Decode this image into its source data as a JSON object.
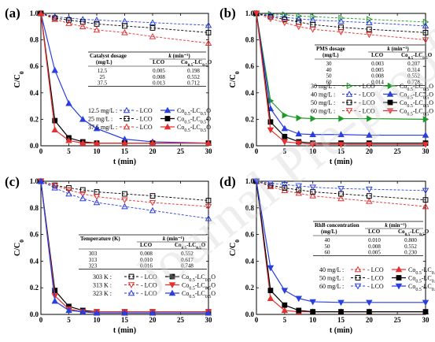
{
  "figure_labels": [
    "(a)",
    "(b)",
    "(c)",
    "(d)"
  ],
  "watermark": "Journal Pre-proof",
  "chart_data": [
    {
      "type": "line",
      "panel_label": "(a)",
      "xlabel": "t (min)",
      "ylabel": "C/C0",
      "xlim": [
        0,
        30
      ],
      "ylim": [
        0.0,
        1.0
      ],
      "xticks": [
        0,
        5,
        10,
        15,
        20,
        25,
        30
      ],
      "yticks": [
        0.0,
        0.2,
        0.4,
        0.6,
        0.8,
        1.0
      ],
      "x": [
        0,
        2.5,
        5,
        7.5,
        10,
        15,
        20,
        30
      ],
      "series": [
        {
          "name": "12.5 mg/L : - LCO",
          "color": "#2a3fe0",
          "dashed": true,
          "marker": "triangle-up",
          "values": [
            1.0,
            0.975,
            0.965,
            0.955,
            0.95,
            0.94,
            0.93,
            0.91
          ]
        },
        {
          "name": "25 mg/L : - LCO",
          "color": "#000000",
          "dashed": true,
          "marker": "square",
          "values": [
            1.0,
            0.965,
            0.95,
            0.935,
            0.92,
            0.905,
            0.89,
            0.855
          ]
        },
        {
          "name": "37.5 mg/L : - LCO",
          "color": "#e53030",
          "dashed": true,
          "marker": "triangle-up",
          "values": [
            1.0,
            0.955,
            0.925,
            0.9,
            0.875,
            0.855,
            0.825,
            0.775
          ]
        },
        {
          "name": "12.5 mg/L : Co0.5-LC0.5O",
          "color": "#2a3fe0",
          "dashed": false,
          "marker": "triangle-up",
          "filled": true,
          "values": [
            1.0,
            0.57,
            0.32,
            0.2,
            0.13,
            0.05,
            0.03,
            0.02
          ]
        },
        {
          "name": "25 mg/L : Co0.5-LC0.5O",
          "color": "#000000",
          "dashed": false,
          "marker": "square",
          "filled": true,
          "values": [
            1.0,
            0.19,
            0.06,
            0.03,
            0.02,
            0.02,
            0.02,
            0.02
          ]
        },
        {
          "name": "37.5 mg/L : Co0.5-LC0.5O",
          "color": "#e53030",
          "dashed": false,
          "marker": "triangle-up",
          "filled": true,
          "values": [
            1.0,
            0.12,
            0.04,
            0.02,
            0.02,
            0.02,
            0.02,
            0.02
          ]
        }
      ],
      "table": {
        "header": [
          "Catalyst dosage",
          "k (min⁻¹)",
          ""
        ],
        "subheader": [
          "(mg/L)",
          "LCO",
          "Co0.5-LC0.5O"
        ],
        "rows": [
          [
            "12.5",
            "0.005",
            "0.198"
          ],
          [
            "25",
            "0.008",
            "0.552"
          ],
          [
            "37.5",
            "0.013",
            "0.712"
          ]
        ]
      }
    },
    {
      "type": "line",
      "panel_label": "(b)",
      "xlabel": "t (min)",
      "ylabel": "C/C0",
      "xlim": [
        0,
        30
      ],
      "ylim": [
        0.0,
        1.0
      ],
      "xticks": [
        0,
        5,
        10,
        15,
        20,
        25,
        30
      ],
      "yticks": [
        0.0,
        0.2,
        0.4,
        0.6,
        0.8,
        1.0
      ],
      "x": [
        0,
        2.5,
        5,
        7.5,
        10,
        15,
        20,
        30
      ],
      "series": [
        {
          "name": "30 mg/L : - LCO",
          "color": "#1f9a2a",
          "dashed": true,
          "marker": "triangle-right",
          "values": [
            1.0,
            0.995,
            0.99,
            0.98,
            0.975,
            0.965,
            0.955,
            0.935
          ]
        },
        {
          "name": "40 mg/L : - LCO",
          "color": "#2a3fe0",
          "dashed": true,
          "marker": "triangle-up",
          "values": [
            1.0,
            0.985,
            0.97,
            0.96,
            0.95,
            0.94,
            0.93,
            0.905
          ]
        },
        {
          "name": "50 mg/L : - LCO",
          "color": "#000000",
          "dashed": true,
          "marker": "square",
          "values": [
            1.0,
            0.975,
            0.955,
            0.935,
            0.915,
            0.895,
            0.88,
            0.855
          ]
        },
        {
          "name": "60 mg/L : - LCO",
          "color": "#e53030",
          "dashed": true,
          "marker": "triangle-down",
          "values": [
            1.0,
            0.96,
            0.93,
            0.9,
            0.88,
            0.86,
            0.84,
            0.8
          ]
        },
        {
          "name": "30 mg/L : Co0.5-LC0.5O",
          "color": "#1f9a2a",
          "dashed": false,
          "marker": "triangle-right",
          "filled": true,
          "values": [
            1.0,
            0.34,
            0.23,
            0.21,
            0.205,
            0.205,
            0.205,
            0.2
          ]
        },
        {
          "name": "40 mg/L : Co0.5-LC0.5O",
          "color": "#2a3fe0",
          "dashed": false,
          "marker": "triangle-up",
          "filled": true,
          "values": [
            1.0,
            0.28,
            0.13,
            0.09,
            0.085,
            0.085,
            0.08,
            0.08
          ]
        },
        {
          "name": "50 mg/L : Co0.5-LC0.5O",
          "color": "#000000",
          "dashed": false,
          "marker": "square",
          "filled": true,
          "values": [
            1.0,
            0.18,
            0.07,
            0.03,
            0.02,
            0.02,
            0.02,
            0.02
          ]
        },
        {
          "name": "60 mg/L : Co0.5-LC0.5O",
          "color": "#e53030",
          "dashed": false,
          "marker": "triangle-down",
          "filled": true,
          "values": [
            1.0,
            0.12,
            0.03,
            0.02,
            0.01,
            0.01,
            0.01,
            0.01
          ]
        }
      ],
      "table": {
        "header": [
          "PMS dosage",
          "k (min⁻¹)",
          ""
        ],
        "subheader": [
          "(mg/L)",
          "LCO",
          "Co0.5-LC0.5O"
        ],
        "rows": [
          [
            "30",
            "0.003",
            "0.207"
          ],
          [
            "40",
            "0.005",
            "0.314"
          ],
          [
            "50",
            "0.008",
            "0.552"
          ],
          [
            "60",
            "0.014",
            "0.778"
          ]
        ]
      }
    },
    {
      "type": "line",
      "panel_label": "(c)",
      "xlabel": "t (min)",
      "ylabel": "C/C0",
      "xlim": [
        0,
        30
      ],
      "ylim": [
        0.0,
        1.0
      ],
      "xticks": [
        0,
        5,
        10,
        15,
        20,
        25,
        30
      ],
      "yticks": [
        0.0,
        0.2,
        0.4,
        0.6,
        0.8,
        1.0
      ],
      "x": [
        0,
        2.5,
        5,
        7.5,
        10,
        15,
        20,
        30
      ],
      "series": [
        {
          "name": "303 K : - LCO",
          "color": "#000000",
          "dashed": true,
          "marker": "square",
          "values": [
            1.0,
            0.97,
            0.95,
            0.935,
            0.92,
            0.905,
            0.89,
            0.855
          ]
        },
        {
          "name": "313 K : - LCO",
          "color": "#e53030",
          "dashed": true,
          "marker": "triangle-down",
          "values": [
            1.0,
            0.965,
            0.935,
            0.905,
            0.885,
            0.86,
            0.84,
            0.81
          ]
        },
        {
          "name": "323 K : - LCO",
          "color": "#2a3fe0",
          "dashed": true,
          "marker": "triangle-up",
          "values": [
            1.0,
            0.95,
            0.905,
            0.87,
            0.84,
            0.81,
            0.78,
            0.72
          ]
        },
        {
          "name": "303 K : Co0.5-LC0.5O",
          "color": "#000000",
          "dashed": false,
          "marker": "square",
          "filled": true,
          "values": [
            1.0,
            0.18,
            0.06,
            0.03,
            0.02,
            0.02,
            0.02,
            0.02
          ]
        },
        {
          "name": "313 K : Co0.5-LC0.5O",
          "color": "#e53030",
          "dashed": false,
          "marker": "triangle-down",
          "filled": true,
          "values": [
            1.0,
            0.14,
            0.04,
            0.02,
            0.02,
            0.02,
            0.02,
            0.02
          ]
        },
        {
          "name": "323 K : Co0.5-LC0.5O",
          "color": "#2a3fe0",
          "dashed": false,
          "marker": "triangle-up",
          "filled": true,
          "values": [
            1.0,
            0.1,
            0.03,
            0.02,
            0.01,
            0.01,
            0.01,
            0.01
          ]
        }
      ],
      "table": {
        "header": [
          "Temperature (K)",
          "k (min⁻¹)",
          ""
        ],
        "subheader": [
          "",
          "LCO",
          "Co0.5-LC0.5O"
        ],
        "rows": [
          [
            "303",
            "0.008",
            "0.552"
          ],
          [
            "313",
            "0.010",
            "0.617"
          ],
          [
            "323",
            "0.016",
            "0.748"
          ]
        ]
      }
    },
    {
      "type": "line",
      "panel_label": "(d)",
      "xlabel": "t (min)",
      "ylabel": "C/C0",
      "xlim": [
        0,
        30
      ],
      "ylim": [
        0.0,
        1.0
      ],
      "xticks": [
        0,
        5,
        10,
        15,
        20,
        25,
        30
      ],
      "yticks": [
        0.0,
        0.2,
        0.4,
        0.6,
        0.8,
        1.0
      ],
      "x": [
        0,
        2.5,
        5,
        7.5,
        10,
        15,
        20,
        30
      ],
      "series": [
        {
          "name": "40 mg/L : - LCO",
          "color": "#e53030",
          "dashed": true,
          "marker": "triangle-up",
          "values": [
            1.0,
            0.96,
            0.93,
            0.91,
            0.89,
            0.87,
            0.85,
            0.81
          ]
        },
        {
          "name": "50 mg/L : - LCO",
          "color": "#000000",
          "dashed": true,
          "marker": "square",
          "values": [
            1.0,
            0.97,
            0.95,
            0.935,
            0.92,
            0.905,
            0.89,
            0.86
          ]
        },
        {
          "name": "60 mg/L : - LCO",
          "color": "#2a3fe0",
          "dashed": true,
          "marker": "triangle-down",
          "values": [
            1.0,
            0.985,
            0.975,
            0.965,
            0.955,
            0.945,
            0.94,
            0.93
          ]
        },
        {
          "name": "40 mg/L : Co0.5-LC0.5O",
          "color": "#e53030",
          "dashed": false,
          "marker": "triangle-up",
          "filled": true,
          "values": [
            1.0,
            0.12,
            0.03,
            0.02,
            0.02,
            0.02,
            0.02,
            0.02
          ]
        },
        {
          "name": "50 mg/L : Co0.5-LC0.5O",
          "color": "#000000",
          "dashed": false,
          "marker": "square",
          "filled": true,
          "values": [
            1.0,
            0.18,
            0.07,
            0.03,
            0.02,
            0.02,
            0.02,
            0.02
          ]
        },
        {
          "name": "60 mg/L : Co0.5-LC0.5O",
          "color": "#2a3fe0",
          "dashed": false,
          "marker": "triangle-down",
          "filled": true,
          "values": [
            1.0,
            0.35,
            0.18,
            0.12,
            0.095,
            0.09,
            0.09,
            0.09
          ]
        }
      ],
      "table": {
        "header": [
          "RhB concentration",
          "k (min⁻¹)",
          ""
        ],
        "subheader": [
          "(mg/L)",
          "LCO",
          "Co0.5-LC0.5O"
        ],
        "rows": [
          [
            "40",
            "0.010",
            "0.800"
          ],
          [
            "50",
            "0.008",
            "0.552"
          ],
          [
            "60",
            "0.005",
            "0.230"
          ]
        ]
      }
    }
  ]
}
